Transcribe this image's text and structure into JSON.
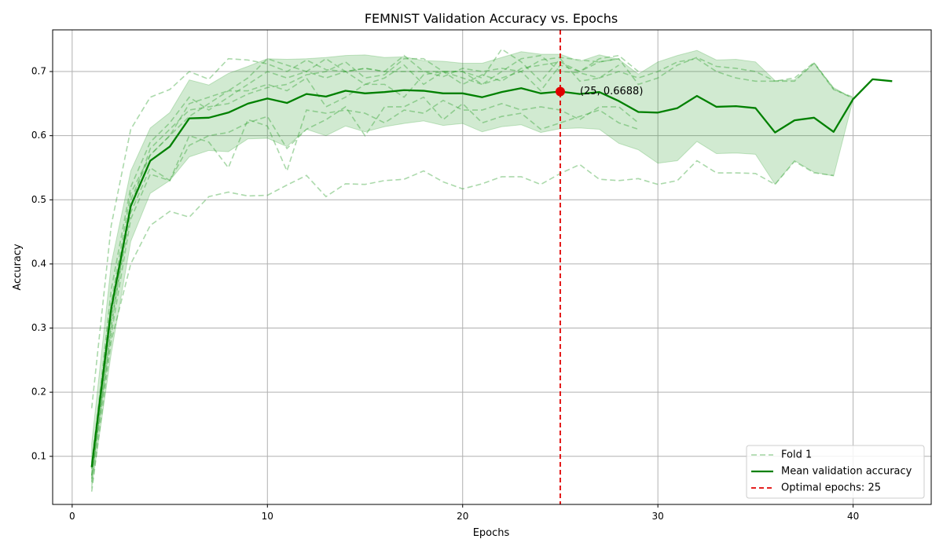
{
  "chart_data": {
    "type": "line",
    "title": "FEMNIST Validation Accuracy vs. Epochs",
    "xlabel": "Epochs",
    "ylabel": "Accuracy",
    "xlim": [
      -1,
      44
    ],
    "ylim": [
      0.025,
      0.765
    ],
    "x_ticks": [
      0,
      10,
      20,
      30,
      40
    ],
    "y_ticks": [
      0.1,
      0.2,
      0.3,
      0.4,
      0.5,
      0.6,
      0.7
    ],
    "x_tick_labels": [
      "0",
      "10",
      "20",
      "30",
      "40"
    ],
    "y_tick_labels": [
      "0.1",
      "0.2",
      "0.3",
      "0.4",
      "0.5",
      "0.6",
      "0.7"
    ],
    "grid": true,
    "legend_position": "bottom-right",
    "colors": {
      "fold": "#2ca02c",
      "mean": "#008000",
      "band": "#2ca02c",
      "optimal": "#e00000"
    },
    "folds": [
      {
        "name": "Fold 1",
        "x": [
          1,
          2,
          3,
          4,
          5,
          6,
          7,
          8,
          9,
          10,
          11,
          12,
          13,
          14,
          15,
          16,
          17,
          18,
          19,
          20,
          21,
          22,
          23,
          24,
          25,
          26,
          27,
          28
        ],
        "values": [
          0.175,
          0.46,
          0.61,
          0.66,
          0.672,
          0.7,
          0.688,
          0.72,
          0.718,
          0.712,
          0.7,
          0.718,
          0.703,
          0.7,
          0.705,
          0.7,
          0.7,
          0.7,
          0.692,
          0.705,
          0.7,
          0.705,
          0.7,
          0.718,
          0.722,
          0.718,
          0.715,
          0.72
        ]
      },
      {
        "name": "",
        "x": [
          1,
          2,
          3,
          4,
          5,
          6,
          7,
          8,
          9,
          10,
          11,
          12,
          13,
          14,
          15,
          16,
          17,
          18,
          19,
          20,
          21,
          22,
          23,
          24,
          25,
          26,
          27,
          28,
          29,
          30,
          31,
          32,
          33,
          34,
          35,
          36,
          37,
          38,
          39,
          40
        ],
        "values": [
          0.08,
          0.36,
          0.52,
          0.59,
          0.62,
          0.66,
          0.64,
          0.66,
          0.68,
          0.7,
          0.69,
          0.7,
          0.72,
          0.7,
          0.705,
          0.7,
          0.725,
          0.7,
          0.7,
          0.68,
          0.695,
          0.685,
          0.705,
          0.71,
          0.715,
          0.7,
          0.715,
          0.72,
          0.68,
          0.69,
          0.71,
          0.722,
          0.708,
          0.705,
          0.7,
          0.685,
          0.685,
          0.713,
          0.672,
          0.66
        ]
      },
      {
        "name": "",
        "x": [
          1,
          2,
          3,
          4,
          5,
          6,
          7,
          8,
          9,
          10,
          11,
          12,
          13,
          14,
          15,
          16,
          17,
          18,
          19,
          20,
          21,
          22,
          23,
          24,
          25,
          26,
          27,
          28,
          29,
          30,
          31,
          32,
          33,
          34,
          35,
          36,
          37,
          38,
          39,
          40
        ],
        "values": [
          0.06,
          0.3,
          0.5,
          0.57,
          0.6,
          0.65,
          0.66,
          0.67,
          0.69,
          0.72,
          0.71,
          0.7,
          0.69,
          0.7,
          0.68,
          0.69,
          0.71,
          0.68,
          0.7,
          0.7,
          0.68,
          0.7,
          0.72,
          0.725,
          0.7,
          0.698,
          0.69,
          0.7,
          0.69,
          0.7,
          0.715,
          0.72,
          0.7,
          0.69,
          0.685,
          0.685,
          0.69,
          0.714,
          0.673,
          0.658
        ]
      },
      {
        "name": "",
        "x": [
          1,
          2,
          3,
          4,
          5,
          6,
          7,
          8,
          9,
          10,
          11,
          12,
          13,
          14,
          15,
          16,
          17,
          18,
          19,
          20,
          21,
          22,
          23,
          24,
          25,
          26,
          27,
          28
        ],
        "values": [
          0.07,
          0.32,
          0.49,
          0.58,
          0.61,
          0.64,
          0.645,
          0.65,
          0.665,
          0.675,
          0.68,
          0.695,
          0.7,
          0.715,
          0.69,
          0.695,
          0.72,
          0.72,
          0.7,
          0.7,
          0.69,
          0.735,
          0.715,
          0.685,
          0.72,
          0.685,
          0.69,
          0.71
        ]
      },
      {
        "name": "",
        "x": [
          1,
          2,
          3,
          4,
          5,
          6,
          7,
          8,
          9,
          10,
          11,
          12,
          13,
          14,
          15,
          16,
          17,
          18,
          19,
          20,
          21,
          22,
          23,
          24,
          25,
          26,
          27,
          28,
          29
        ],
        "values": [
          0.09,
          0.34,
          0.51,
          0.57,
          0.6,
          0.63,
          0.65,
          0.67,
          0.67,
          0.68,
          0.67,
          0.69,
          0.645,
          0.66,
          0.68,
          0.68,
          0.66,
          0.695,
          0.7,
          0.69,
          0.68,
          0.69,
          0.7,
          0.67,
          0.71,
          0.7,
          0.72,
          0.725,
          0.7
        ]
      },
      {
        "name": "",
        "x": [
          1,
          2,
          3,
          4,
          5,
          6,
          7,
          8,
          9,
          10,
          11,
          12,
          13,
          14,
          15,
          16,
          17,
          18,
          19,
          20,
          21,
          22,
          23,
          24,
          25,
          26,
          27,
          28,
          29
        ],
        "values": [
          0.065,
          0.31,
          0.48,
          0.55,
          0.53,
          0.585,
          0.6,
          0.605,
          0.62,
          0.63,
          0.58,
          0.61,
          0.625,
          0.645,
          0.6,
          0.645,
          0.645,
          0.66,
          0.625,
          0.65,
          0.62,
          0.63,
          0.635,
          0.61,
          0.62,
          0.63,
          0.64,
          0.62,
          0.61
        ]
      },
      {
        "name": "",
        "x": [
          1,
          2,
          3,
          4,
          5,
          6,
          7,
          8,
          9,
          10,
          11,
          12,
          13,
          14,
          15,
          16,
          17,
          18,
          19,
          20,
          21,
          22,
          23,
          24,
          25,
          26,
          27,
          28,
          29
        ],
        "values": [
          0.07,
          0.29,
          0.47,
          0.54,
          0.53,
          0.6,
          0.59,
          0.55,
          0.625,
          0.615,
          0.545,
          0.64,
          0.635,
          0.64,
          0.635,
          0.62,
          0.64,
          0.635,
          0.655,
          0.64,
          0.64,
          0.65,
          0.64,
          0.645,
          0.64,
          0.625,
          0.645,
          0.645,
          0.62
        ]
      },
      {
        "name": "",
        "x": [
          1,
          2,
          3,
          4,
          5,
          6,
          7,
          8,
          9,
          10,
          11,
          12,
          13,
          14,
          15,
          16,
          17,
          18,
          19,
          20,
          21,
          22,
          23,
          24,
          25,
          26,
          27,
          28,
          29,
          30,
          31,
          32,
          33,
          34,
          35,
          36,
          37,
          38,
          39
        ],
        "values": [
          0.045,
          0.28,
          0.4,
          0.46,
          0.482,
          0.473,
          0.505,
          0.512,
          0.506,
          0.507,
          0.523,
          0.538,
          0.505,
          0.525,
          0.524,
          0.53,
          0.532,
          0.545,
          0.528,
          0.517,
          0.525,
          0.536,
          0.536,
          0.524,
          0.541,
          0.555,
          0.532,
          0.53,
          0.533,
          0.524,
          0.53,
          0.561,
          0.542,
          0.542,
          0.541,
          0.524,
          0.56,
          0.542,
          0.538
        ]
      }
    ],
    "mean": {
      "name": "Mean validation accuracy",
      "x": [
        1,
        2,
        3,
        4,
        5,
        6,
        7,
        8,
        9,
        10,
        11,
        12,
        13,
        14,
        15,
        16,
        17,
        18,
        19,
        20,
        21,
        22,
        23,
        24,
        25,
        26,
        27,
        28,
        29,
        30,
        31,
        32,
        33,
        34,
        35,
        36,
        37,
        38,
        39,
        40,
        41,
        42
      ],
      "values": [
        0.083,
        0.33,
        0.49,
        0.561,
        0.583,
        0.627,
        0.628,
        0.636,
        0.65,
        0.658,
        0.651,
        0.665,
        0.661,
        0.67,
        0.666,
        0.668,
        0.671,
        0.67,
        0.666,
        0.666,
        0.66,
        0.668,
        0.674,
        0.666,
        0.6688,
        0.665,
        0.668,
        0.654,
        0.637,
        0.636,
        0.643,
        0.662,
        0.645,
        0.646,
        0.643,
        0.605,
        0.624,
        0.628,
        0.606,
        0.657,
        0.688,
        0.685
      ]
    },
    "band": {
      "x": [
        1,
        2,
        3,
        4,
        5,
        6,
        7,
        8,
        9,
        10,
        11,
        12,
        13,
        14,
        15,
        16,
        17,
        18,
        19,
        20,
        21,
        22,
        23,
        24,
        25,
        26,
        27,
        28,
        29,
        30,
        31,
        32,
        33,
        34,
        35,
        36,
        37,
        38,
        39,
        40
      ],
      "upper": [
        0.12,
        0.4,
        0.545,
        0.612,
        0.636,
        0.687,
        0.679,
        0.697,
        0.708,
        0.72,
        0.719,
        0.72,
        0.722,
        0.725,
        0.726,
        0.722,
        0.723,
        0.717,
        0.716,
        0.713,
        0.713,
        0.722,
        0.731,
        0.727,
        0.727,
        0.716,
        0.726,
        0.719,
        0.696,
        0.715,
        0.725,
        0.733,
        0.718,
        0.719,
        0.715,
        0.686,
        0.687,
        0.713,
        0.675,
        0.658
      ],
      "lower": [
        0.05,
        0.26,
        0.435,
        0.51,
        0.53,
        0.567,
        0.577,
        0.575,
        0.595,
        0.596,
        0.583,
        0.61,
        0.6,
        0.615,
        0.606,
        0.614,
        0.619,
        0.623,
        0.616,
        0.619,
        0.606,
        0.614,
        0.617,
        0.605,
        0.611,
        0.612,
        0.61,
        0.588,
        0.578,
        0.557,
        0.561,
        0.591,
        0.572,
        0.573,
        0.571,
        0.524,
        0.561,
        0.543,
        0.537,
        0.656
      ]
    },
    "optimal": {
      "name": "Optimal epochs: 25",
      "epoch": 25,
      "value": 0.6688,
      "annotation": "(25, 0.6688)"
    },
    "legend": [
      {
        "key": "fold",
        "label": "Fold 1"
      },
      {
        "key": "mean",
        "label": "Mean validation accuracy"
      },
      {
        "key": "optimal",
        "label": "Optimal epochs: 25"
      }
    ]
  }
}
